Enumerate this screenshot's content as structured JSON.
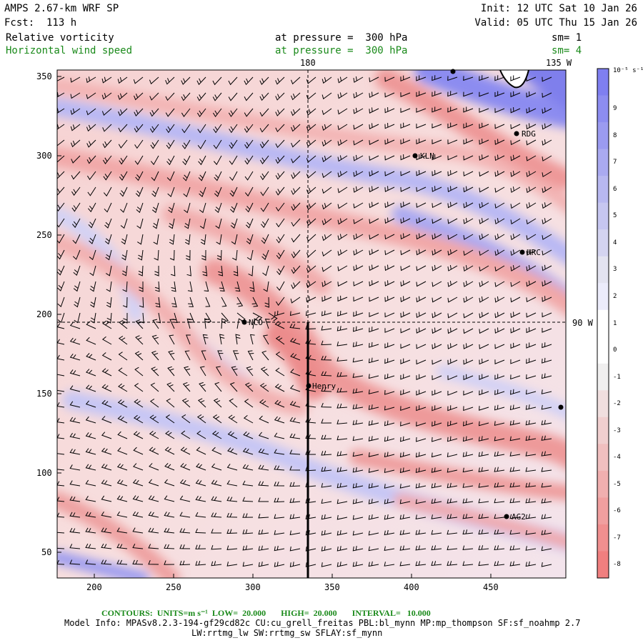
{
  "header": {
    "model": "AMPS 2.67-km WRF SP",
    "forecast": "Fcst:  113 h",
    "init": "Init: 12 UTC Sat 10 Jan 26",
    "valid": "Valid: 05 UTC Thu 15 Jan 26"
  },
  "fields": [
    {
      "name": "Relative vorticity",
      "level": "at pressure =  300 hPa",
      "smooth": "sm= 1"
    },
    {
      "name": "Horizontal wind speed",
      "level": "at pressure =  300 hPa",
      "smooth": "sm= 4"
    }
  ],
  "axes": {
    "x_ticks": [
      "200",
      "250",
      "300",
      "350",
      "400",
      "450"
    ],
    "y_ticks": [
      "350",
      "300",
      "250",
      "200",
      "150",
      "100",
      "50"
    ],
    "lon_labels": {
      "top_180": "180",
      "top_135w": "135 W",
      "right_90w": "90 W"
    }
  },
  "stations": [
    {
      "label": "RDG"
    },
    {
      "label": "KLN"
    },
    {
      "label": "HRC"
    },
    {
      "label": "NCO"
    },
    {
      "label": "Henry"
    },
    {
      "label": "AG2"
    }
  ],
  "colorbar": {
    "unit_label": "10⁻⁵ s⁻¹",
    "labels": [
      "9",
      "8",
      "7",
      "6",
      "5",
      "4",
      "3",
      "2",
      "1",
      "0",
      "-1",
      "-2",
      "-3",
      "-4",
      "-5",
      "-6",
      "-7",
      "-8"
    ],
    "positive_color": "#7f7ff0",
    "negative_color": "#f07f7f"
  },
  "footer": {
    "contours": "CONTOURS:  UNITS=m s⁻¹  LOW=  20.000       HIGH=  20.000       INTERVAL=   10.000",
    "model_info": "Model Info: MPASv8.2.3-194-gf29cd82c CU:cu_grell_freitas PBL:bl_mynn MP:mp_thompson SF:sf_noahmp 2.7",
    "model_info2": "LW:rrtmg_lw SW:rrtmg_sw SFLAY:sf_mynn"
  }
}
